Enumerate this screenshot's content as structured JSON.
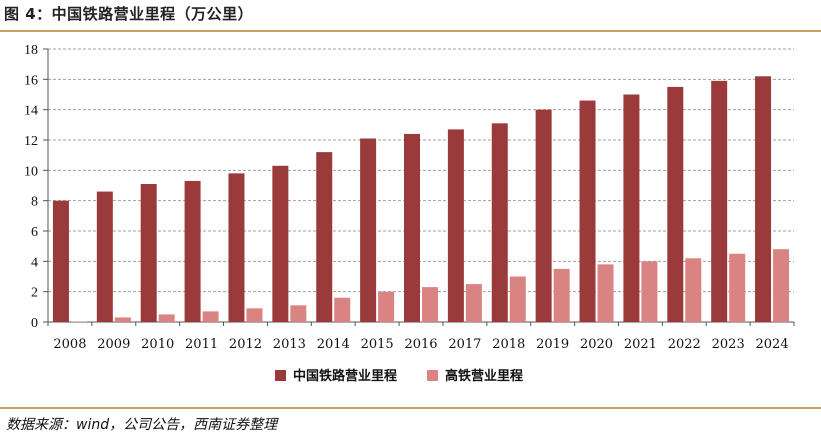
{
  "header": {
    "title": "图 4：中国铁路营业里程（万公里）"
  },
  "footer": {
    "source": "数据来源：wind，公司公告，西南证券整理"
  },
  "colors": {
    "accent_rule": "#c9a063"
  },
  "chart_data": {
    "type": "bar",
    "title": "",
    "xlabel": "",
    "ylabel": "",
    "ylim": [
      0,
      18
    ],
    "yticks": [
      0,
      2,
      4,
      6,
      8,
      10,
      12,
      14,
      16,
      18
    ],
    "grid": true,
    "legend_position": "bottom",
    "categories": [
      "2008",
      "2009",
      "2010",
      "2011",
      "2012",
      "2013",
      "2014",
      "2015",
      "2016",
      "2017",
      "2018",
      "2019",
      "2020",
      "2021",
      "2022",
      "2023",
      "2024"
    ],
    "series": [
      {
        "name": "中国铁路营业里程",
        "color": "#9b3a3a",
        "values": [
          8.0,
          8.6,
          9.1,
          9.3,
          9.8,
          10.3,
          11.2,
          12.1,
          12.4,
          12.7,
          13.1,
          14.0,
          14.6,
          15.0,
          15.5,
          15.9,
          16.2
        ]
      },
      {
        "name": "高铁营业里程",
        "color": "#d98482",
        "values": [
          0.0,
          0.3,
          0.5,
          0.7,
          0.9,
          1.1,
          1.6,
          2.0,
          2.3,
          2.5,
          3.0,
          3.5,
          3.8,
          4.0,
          4.2,
          4.5,
          4.8
        ]
      }
    ]
  }
}
